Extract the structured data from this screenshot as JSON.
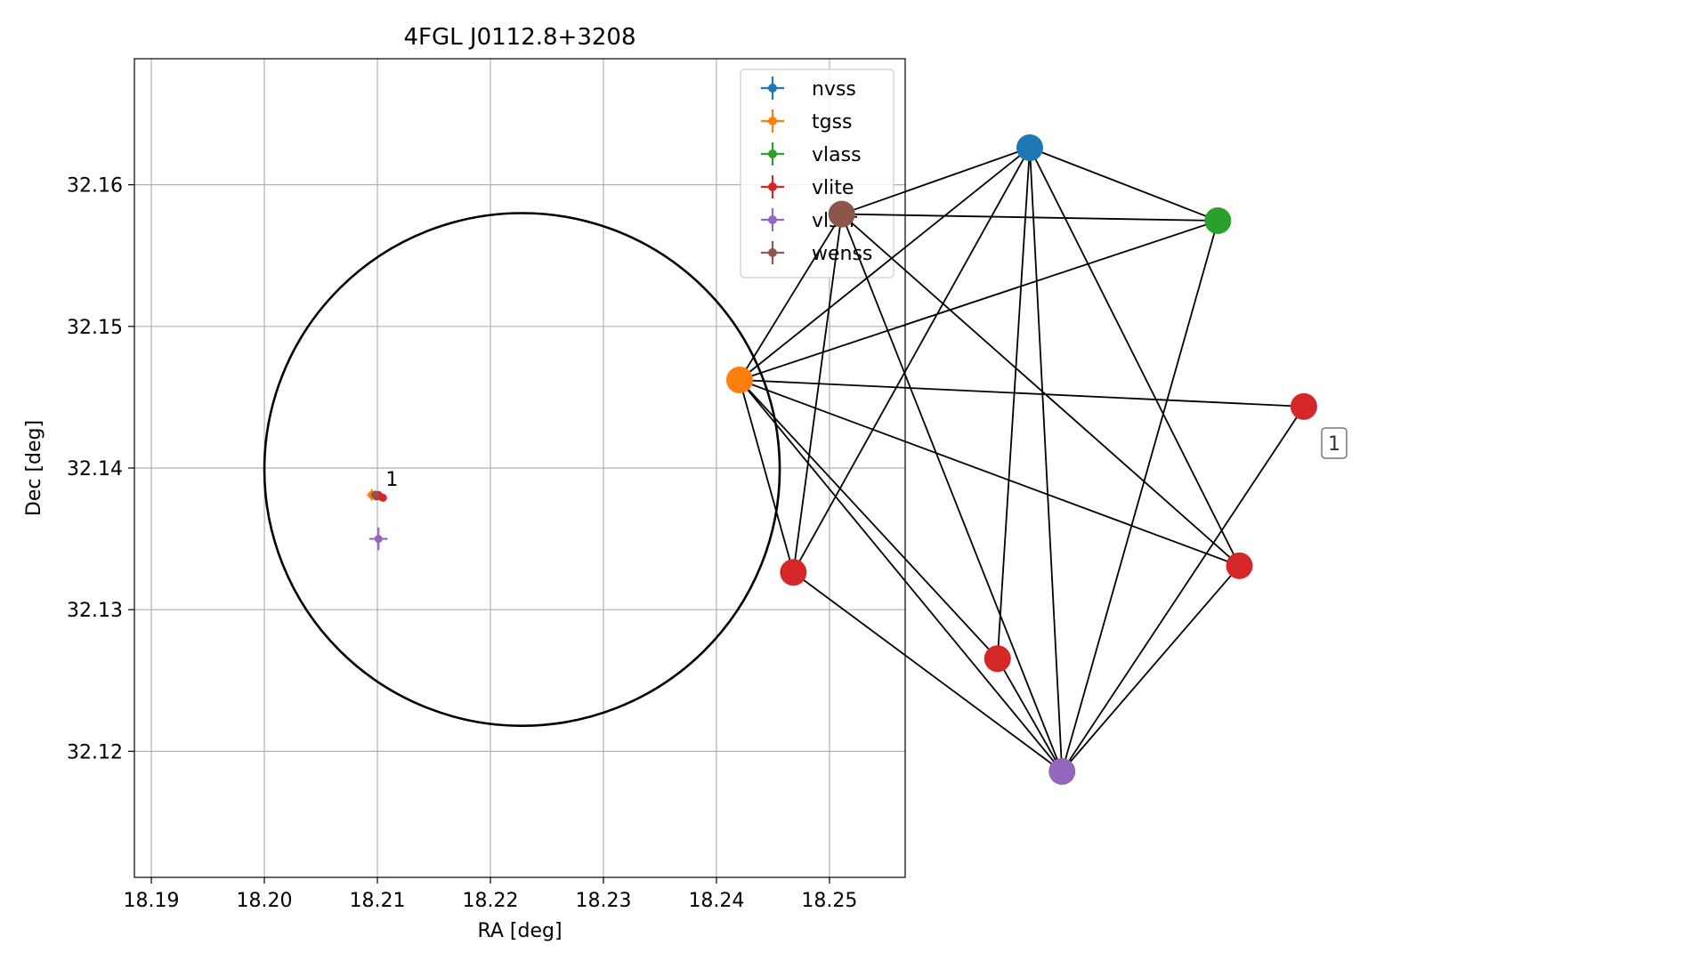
{
  "chart_data": [
    {
      "type": "scatter",
      "title": "4FGL J0112.8+3208",
      "xlabel": "RA [deg]",
      "ylabel": "Dec [deg]",
      "xlim": [
        18.1885,
        18.2567
      ],
      "ylim": [
        32.1111,
        32.1689
      ],
      "xticks": [
        "18.19",
        "18.20",
        "18.21",
        "18.22",
        "18.23",
        "18.24",
        "18.25"
      ],
      "xtick_values": [
        18.19,
        18.2,
        18.21,
        18.22,
        18.23,
        18.24,
        18.25
      ],
      "yticks": [
        "32.12",
        "32.13",
        "32.14",
        "32.15",
        "32.16"
      ],
      "ytick_values": [
        32.12,
        32.13,
        32.14,
        32.15,
        32.16
      ],
      "grid": true,
      "legend_position": "top-right",
      "circle": {
        "center": [
          18.2228,
          32.1399
        ],
        "radius_ra": 0.0228,
        "radius_dec": 0.0181,
        "color": "#000000"
      },
      "series": [
        {
          "name": "nvss",
          "color": "#1f77b4",
          "points": [
            {
              "x": 18.2097,
              "y": 32.1381,
              "xerr": 0.0002,
              "yerr": 0.0002
            }
          ]
        },
        {
          "name": "tgss",
          "color": "#ff7f0e",
          "points": [
            {
              "x": 18.2095,
              "y": 32.1381,
              "xerr": 0.0004,
              "yerr": 0.0004
            }
          ]
        },
        {
          "name": "vlass",
          "color": "#2ca02c",
          "points": [
            {
              "x": 18.2098,
              "y": 32.1381,
              "xerr": 0.0001,
              "yerr": 0.0001
            }
          ]
        },
        {
          "name": "vlite",
          "color": "#d62728",
          "points": [
            {
              "x": 18.2105,
              "y": 32.1379,
              "xerr": 0.0002,
              "yerr": 0.0002
            },
            {
              "x": 18.2099,
              "y": 32.138,
              "xerr": 0.0002,
              "yerr": 0.0002
            },
            {
              "x": 18.2101,
              "y": 32.1381,
              "xerr": 0.0002,
              "yerr": 0.0002
            },
            {
              "x": 18.2102,
              "y": 32.138,
              "xerr": 0.0002,
              "yerr": 0.0002
            }
          ]
        },
        {
          "name": "vlssr",
          "color": "#9467bd",
          "points": [
            {
              "x": 18.2101,
              "y": 32.135,
              "xerr": 0.0008,
              "yerr": 0.0008
            }
          ]
        },
        {
          "name": "wenss",
          "color": "#8c564b",
          "points": [
            {
              "x": 18.2098,
              "y": 32.1381,
              "xerr": 0.0003,
              "yerr": 0.0003
            }
          ]
        }
      ],
      "annotations": [
        {
          "text": "1",
          "x": 18.2105,
          "y": 32.1385
        }
      ]
    },
    {
      "type": "network",
      "label": "1",
      "nodes": [
        {
          "id": "nvss",
          "color": "#1f77b4",
          "pos": [
            0.57,
            0.12
          ]
        },
        {
          "id": "wenss",
          "color": "#8c564b",
          "pos": [
            0.22,
            0.22
          ]
        },
        {
          "id": "vlass",
          "color": "#2ca02c",
          "pos": [
            0.92,
            0.23
          ]
        },
        {
          "id": "tgss",
          "color": "#ff7f0e",
          "pos": [
            0.03,
            0.47
          ]
        },
        {
          "id": "vlite_a",
          "color": "#d62728",
          "pos": [
            1.08,
            0.51
          ]
        },
        {
          "id": "vlite_b",
          "color": "#d62728",
          "pos": [
            0.13,
            0.76
          ]
        },
        {
          "id": "vlite_c",
          "color": "#d62728",
          "pos": [
            0.96,
            0.75
          ]
        },
        {
          "id": "vlite_d",
          "color": "#d62728",
          "pos": [
            0.51,
            0.89
          ]
        },
        {
          "id": "vlssr",
          "color": "#9467bd",
          "pos": [
            0.63,
            1.06
          ]
        }
      ],
      "edges": [
        [
          "nvss",
          "wenss"
        ],
        [
          "nvss",
          "vlass"
        ],
        [
          "nvss",
          "tgss"
        ],
        [
          "nvss",
          "vlite_b"
        ],
        [
          "nvss",
          "vlite_c"
        ],
        [
          "nvss",
          "vlite_d"
        ],
        [
          "nvss",
          "vlssr"
        ],
        [
          "wenss",
          "vlass"
        ],
        [
          "wenss",
          "tgss"
        ],
        [
          "wenss",
          "vlite_b"
        ],
        [
          "wenss",
          "vlite_c"
        ],
        [
          "wenss",
          "vlssr"
        ],
        [
          "vlass",
          "tgss"
        ],
        [
          "vlass",
          "vlssr"
        ],
        [
          "tgss",
          "vlite_a"
        ],
        [
          "tgss",
          "vlite_b"
        ],
        [
          "tgss",
          "vlite_c"
        ],
        [
          "tgss",
          "vlite_d"
        ],
        [
          "tgss",
          "vlssr"
        ],
        [
          "vlite_a",
          "vlssr"
        ],
        [
          "vlite_b",
          "vlssr"
        ],
        [
          "vlite_c",
          "vlssr"
        ],
        [
          "vlite_d",
          "vlssr"
        ]
      ]
    }
  ]
}
